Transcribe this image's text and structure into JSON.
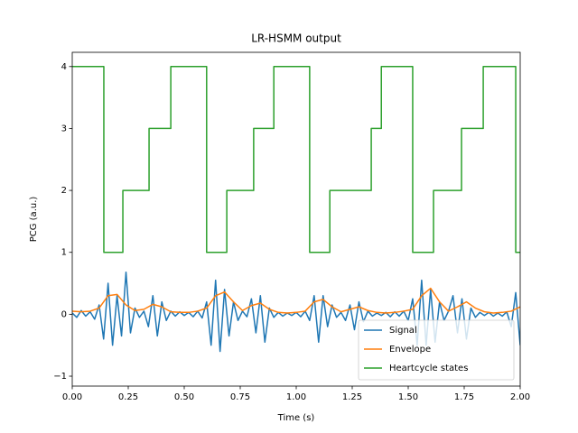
{
  "chart_data": {
    "type": "line",
    "title": "LR-HSMM output",
    "xlabel": "Time (s)",
    "ylabel": "PCG (a.u.)",
    "xlim": [
      0,
      2
    ],
    "ylim": [
      -1.16,
      4.23
    ],
    "xticks": [
      {
        "value": 0,
        "label": "0.00"
      },
      0.25,
      {
        "value": 0.5,
        "label": "0.50"
      },
      0.75,
      {
        "value": 1,
        "label": "1.00"
      },
      1.25,
      {
        "value": 1.5,
        "label": "1.50"
      },
      1.75,
      {
        "value": 2,
        "label": "2.00"
      }
    ],
    "yticks": [
      {
        "value": -1,
        "label": "−1"
      },
      0,
      1,
      2,
      3,
      4
    ],
    "legend": "lower right",
    "series": [
      {
        "name": "Signal",
        "color": "#1f77b4",
        "x": [
          0,
          0.02,
          0.04,
          0.06,
          0.08,
          0.1,
          0.12,
          0.14,
          0.16,
          0.18,
          0.2,
          0.22,
          0.24,
          0.26,
          0.28,
          0.3,
          0.32,
          0.34,
          0.36,
          0.38,
          0.4,
          0.42,
          0.44,
          0.46,
          0.48,
          0.5,
          0.52,
          0.54,
          0.56,
          0.58,
          0.6,
          0.62,
          0.64,
          0.66,
          0.68,
          0.7,
          0.72,
          0.74,
          0.76,
          0.78,
          0.8,
          0.82,
          0.84,
          0.86,
          0.88,
          0.9,
          0.92,
          0.94,
          0.96,
          0.98,
          1,
          1.02,
          1.04,
          1.06,
          1.08,
          1.1,
          1.12,
          1.14,
          1.16,
          1.18,
          1.2,
          1.22,
          1.24,
          1.26,
          1.28,
          1.3,
          1.32,
          1.34,
          1.36,
          1.38,
          1.4,
          1.42,
          1.44,
          1.46,
          1.48,
          1.5,
          1.52,
          1.54,
          1.56,
          1.58,
          1.6,
          1.62,
          1.64,
          1.66,
          1.68,
          1.7,
          1.72,
          1.74,
          1.76,
          1.78,
          1.8,
          1.82,
          1.84,
          1.86,
          1.88,
          1.9,
          1.92,
          1.94,
          1.96,
          1.98,
          2
        ],
        "values": [
          0.02,
          -0.05,
          0.06,
          -0.03,
          0.04,
          -0.08,
          0.15,
          -0.4,
          0.5,
          -0.5,
          0.3,
          -0.35,
          0.68,
          -0.3,
          0.1,
          -0.05,
          0.05,
          -0.2,
          0.3,
          -0.35,
          0.2,
          -0.1,
          0.05,
          -0.03,
          0.04,
          -0.02,
          0.03,
          -0.04,
          0.05,
          -0.06,
          0.2,
          -0.5,
          0.55,
          -0.6,
          0.4,
          -0.35,
          0.2,
          -0.1,
          0.05,
          -0.04,
          0.25,
          -0.3,
          0.3,
          -0.45,
          0.1,
          -0.05,
          0.03,
          -0.03,
          0.02,
          -0.02,
          0.03,
          -0.04,
          0.05,
          -0.1,
          0.3,
          -0.45,
          0.3,
          -0.2,
          0.15,
          -0.05,
          0.03,
          -0.1,
          0.15,
          -0.25,
          0.2,
          -0.12,
          0.05,
          -0.03,
          0.02,
          -0.02,
          0.03,
          -0.04,
          0.04,
          -0.03,
          0.05,
          -0.1,
          0.25,
          -0.5,
          0.55,
          -0.5,
          0.4,
          -0.45,
          0.2,
          -0.1,
          0.05,
          0.3,
          -0.3,
          0.25,
          -0.4,
          0.1,
          -0.05,
          0.03,
          -0.02,
          0.03,
          -0.03,
          0.02,
          -0.03,
          0.04,
          -0.2,
          0.35,
          -0.5
        ]
      },
      {
        "name": "Envelope",
        "color": "#ff7f0e",
        "x": [
          0,
          0.04,
          0.08,
          0.12,
          0.16,
          0.2,
          0.24,
          0.28,
          0.32,
          0.36,
          0.4,
          0.44,
          0.48,
          0.52,
          0.56,
          0.6,
          0.64,
          0.68,
          0.72,
          0.76,
          0.8,
          0.84,
          0.88,
          0.92,
          0.96,
          1,
          1.04,
          1.08,
          1.12,
          1.16,
          1.2,
          1.24,
          1.28,
          1.32,
          1.36,
          1.4,
          1.44,
          1.48,
          1.52,
          1.56,
          1.6,
          1.64,
          1.68,
          1.72,
          1.76,
          1.8,
          1.84,
          1.88,
          1.92,
          1.96,
          2
        ],
        "values": [
          0.05,
          0.04,
          0.05,
          0.1,
          0.3,
          0.32,
          0.15,
          0.06,
          0.08,
          0.16,
          0.12,
          0.04,
          0.03,
          0.03,
          0.05,
          0.1,
          0.3,
          0.36,
          0.2,
          0.06,
          0.14,
          0.18,
          0.08,
          0.03,
          0.02,
          0.03,
          0.05,
          0.2,
          0.24,
          0.12,
          0.04,
          0.08,
          0.12,
          0.06,
          0.03,
          0.02,
          0.03,
          0.05,
          0.08,
          0.3,
          0.42,
          0.2,
          0.05,
          0.12,
          0.2,
          0.1,
          0.04,
          0.02,
          0.03,
          0.05,
          0.12
        ]
      },
      {
        "name": "Heartcycle states",
        "color": "#2ca02c",
        "x": [
          0,
          0.141,
          0.141,
          0.226,
          0.226,
          0.343,
          0.343,
          0.44,
          0.44,
          0.6,
          0.6,
          0.69,
          0.69,
          0.81,
          0.81,
          0.9,
          0.9,
          1.06,
          1.06,
          1.15,
          1.15,
          1.335,
          1.335,
          1.38,
          1.38,
          1.52,
          1.52,
          1.613,
          1.613,
          1.738,
          1.738,
          1.835,
          1.835,
          1.98,
          1.98,
          2
        ],
        "values": [
          4,
          4,
          1,
          1,
          2,
          2,
          3,
          3,
          4,
          4,
          1,
          1,
          2,
          2,
          3,
          3,
          4,
          4,
          1,
          1,
          2,
          2,
          3,
          3,
          4,
          4,
          1,
          1,
          2,
          2,
          3,
          3,
          4,
          4,
          1,
          1
        ]
      }
    ]
  }
}
